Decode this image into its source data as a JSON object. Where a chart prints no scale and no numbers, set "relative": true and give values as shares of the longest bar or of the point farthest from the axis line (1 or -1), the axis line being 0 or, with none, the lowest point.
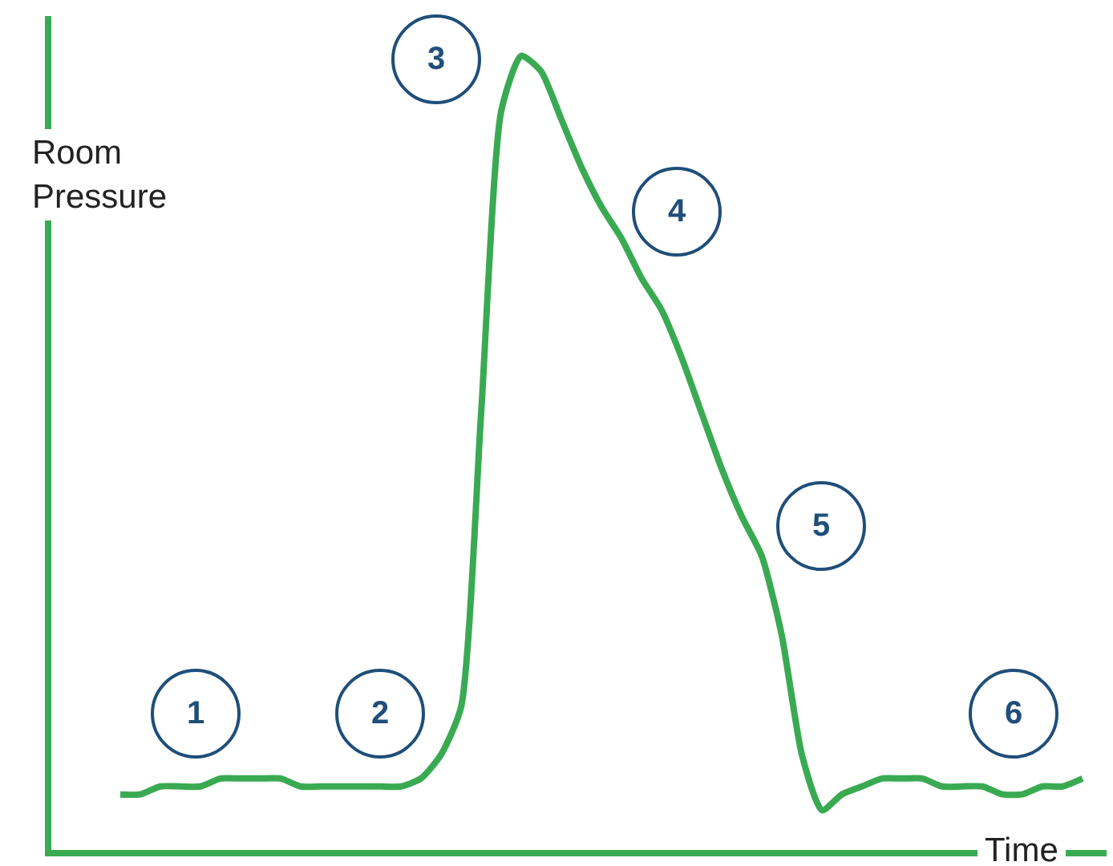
{
  "chart_data": {
    "type": "line",
    "relative": true,
    "xlabel": "Time",
    "ylabel": "Room Pressure",
    "line_style": "solid",
    "categories": [
      null,
      null,
      null,
      null,
      null,
      null,
      null,
      null,
      null,
      null,
      null,
      null,
      null,
      null,
      null,
      null,
      null,
      null,
      null,
      null,
      null,
      null,
      null,
      null,
      null,
      null,
      null,
      null,
      null,
      null,
      null,
      null,
      null,
      null,
      null,
      null,
      null,
      null,
      null,
      null,
      null,
      null,
      null,
      null,
      null,
      null,
      null,
      null,
      null
    ],
    "series": [
      {
        "color": "#3aaa52",
        "values": [
          0.07,
          0.07,
          0.08,
          0.08,
          0.08,
          0.09,
          0.09,
          0.09,
          0.09,
          0.08,
          0.08,
          0.08,
          0.08,
          0.08,
          0.08,
          0.09,
          0.12,
          0.18,
          0.55,
          0.93,
          1,
          0.98,
          0.92,
          0.86,
          0.81,
          0.77,
          0.72,
          0.68,
          0.62,
          0.55,
          0.48,
          0.42,
          0.37,
          0.27,
          0.12,
          0.05,
          0.07,
          0.08,
          0.09,
          0.09,
          0.09,
          0.08,
          0.08,
          0.08,
          0.07,
          0.07,
          0.08,
          0.08,
          0.09
        ]
      }
    ],
    "annotations": [
      "1",
      "2",
      "3",
      "4",
      "5",
      "6"
    ]
  }
}
